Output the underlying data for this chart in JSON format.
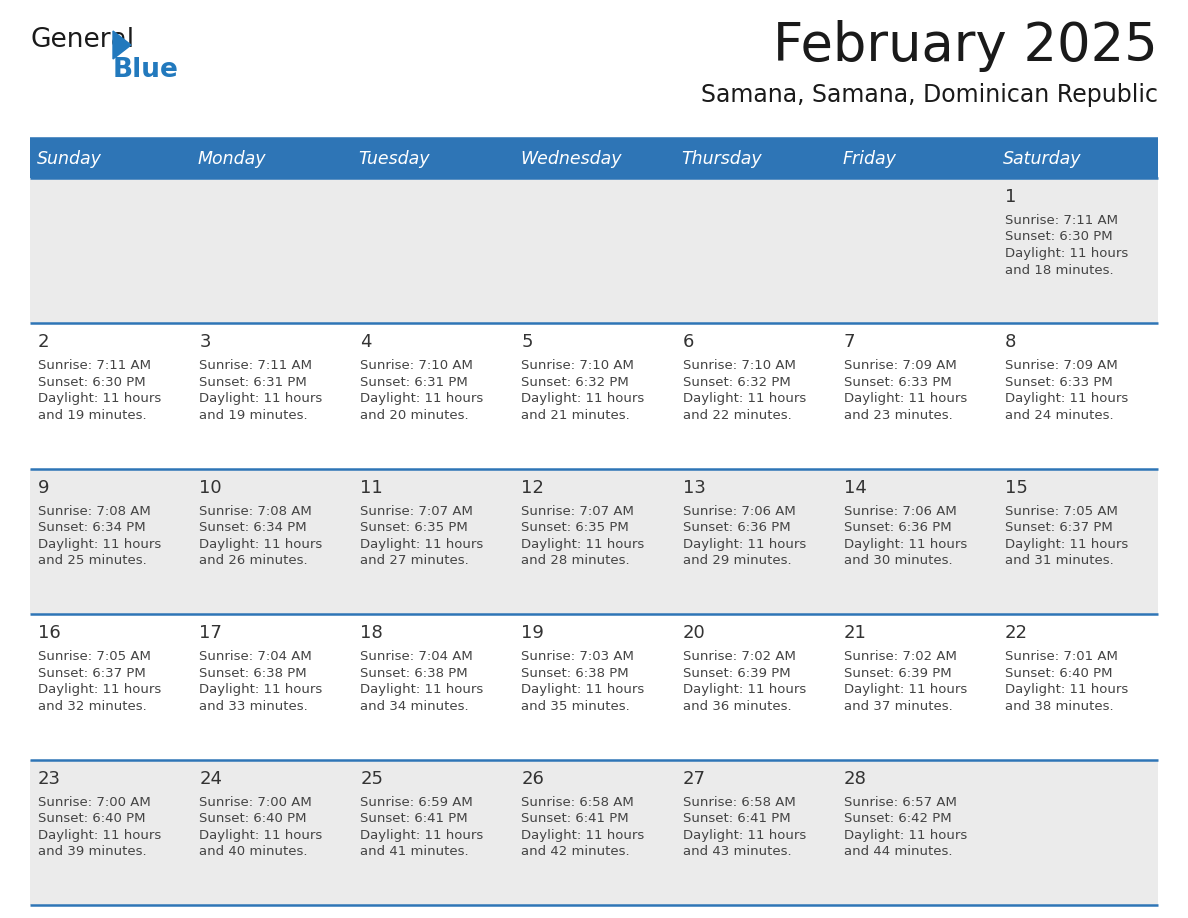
{
  "title": "February 2025",
  "subtitle": "Samana, Samana, Dominican Republic",
  "header_bg": "#2E75B6",
  "header_text_color": "#FFFFFF",
  "weekdays": [
    "Sunday",
    "Monday",
    "Tuesday",
    "Wednesday",
    "Thursday",
    "Friday",
    "Saturday"
  ],
  "row0_bg": "#EBEBEB",
  "row1_bg": "#FFFFFF",
  "row2_bg": "#EBEBEB",
  "row3_bg": "#FFFFFF",
  "row4_bg": "#EBEBEB",
  "separator_color": "#2E75B6",
  "day_number_color": "#333333",
  "cell_text_color": "#444444",
  "calendar": [
    [
      null,
      null,
      null,
      null,
      null,
      null,
      {
        "day": 1,
        "sunrise": "7:11 AM",
        "sunset": "6:30 PM",
        "daylight_h": "11 hours",
        "daylight_m": "18 minutes."
      }
    ],
    [
      {
        "day": 2,
        "sunrise": "7:11 AM",
        "sunset": "6:30 PM",
        "daylight_h": "11 hours",
        "daylight_m": "19 minutes."
      },
      {
        "day": 3,
        "sunrise": "7:11 AM",
        "sunset": "6:31 PM",
        "daylight_h": "11 hours",
        "daylight_m": "19 minutes."
      },
      {
        "day": 4,
        "sunrise": "7:10 AM",
        "sunset": "6:31 PM",
        "daylight_h": "11 hours",
        "daylight_m": "20 minutes."
      },
      {
        "day": 5,
        "sunrise": "7:10 AM",
        "sunset": "6:32 PM",
        "daylight_h": "11 hours",
        "daylight_m": "21 minutes."
      },
      {
        "day": 6,
        "sunrise": "7:10 AM",
        "sunset": "6:32 PM",
        "daylight_h": "11 hours",
        "daylight_m": "22 minutes."
      },
      {
        "day": 7,
        "sunrise": "7:09 AM",
        "sunset": "6:33 PM",
        "daylight_h": "11 hours",
        "daylight_m": "23 minutes."
      },
      {
        "day": 8,
        "sunrise": "7:09 AM",
        "sunset": "6:33 PM",
        "daylight_h": "11 hours",
        "daylight_m": "24 minutes."
      }
    ],
    [
      {
        "day": 9,
        "sunrise": "7:08 AM",
        "sunset": "6:34 PM",
        "daylight_h": "11 hours",
        "daylight_m": "25 minutes."
      },
      {
        "day": 10,
        "sunrise": "7:08 AM",
        "sunset": "6:34 PM",
        "daylight_h": "11 hours",
        "daylight_m": "26 minutes."
      },
      {
        "day": 11,
        "sunrise": "7:07 AM",
        "sunset": "6:35 PM",
        "daylight_h": "11 hours",
        "daylight_m": "27 minutes."
      },
      {
        "day": 12,
        "sunrise": "7:07 AM",
        "sunset": "6:35 PM",
        "daylight_h": "11 hours",
        "daylight_m": "28 minutes."
      },
      {
        "day": 13,
        "sunrise": "7:06 AM",
        "sunset": "6:36 PM",
        "daylight_h": "11 hours",
        "daylight_m": "29 minutes."
      },
      {
        "day": 14,
        "sunrise": "7:06 AM",
        "sunset": "6:36 PM",
        "daylight_h": "11 hours",
        "daylight_m": "30 minutes."
      },
      {
        "day": 15,
        "sunrise": "7:05 AM",
        "sunset": "6:37 PM",
        "daylight_h": "11 hours",
        "daylight_m": "31 minutes."
      }
    ],
    [
      {
        "day": 16,
        "sunrise": "7:05 AM",
        "sunset": "6:37 PM",
        "daylight_h": "11 hours",
        "daylight_m": "32 minutes."
      },
      {
        "day": 17,
        "sunrise": "7:04 AM",
        "sunset": "6:38 PM",
        "daylight_h": "11 hours",
        "daylight_m": "33 minutes."
      },
      {
        "day": 18,
        "sunrise": "7:04 AM",
        "sunset": "6:38 PM",
        "daylight_h": "11 hours",
        "daylight_m": "34 minutes."
      },
      {
        "day": 19,
        "sunrise": "7:03 AM",
        "sunset": "6:38 PM",
        "daylight_h": "11 hours",
        "daylight_m": "35 minutes."
      },
      {
        "day": 20,
        "sunrise": "7:02 AM",
        "sunset": "6:39 PM",
        "daylight_h": "11 hours",
        "daylight_m": "36 minutes."
      },
      {
        "day": 21,
        "sunrise": "7:02 AM",
        "sunset": "6:39 PM",
        "daylight_h": "11 hours",
        "daylight_m": "37 minutes."
      },
      {
        "day": 22,
        "sunrise": "7:01 AM",
        "sunset": "6:40 PM",
        "daylight_h": "11 hours",
        "daylight_m": "38 minutes."
      }
    ],
    [
      {
        "day": 23,
        "sunrise": "7:00 AM",
        "sunset": "6:40 PM",
        "daylight_h": "11 hours",
        "daylight_m": "39 minutes."
      },
      {
        "day": 24,
        "sunrise": "7:00 AM",
        "sunset": "6:40 PM",
        "daylight_h": "11 hours",
        "daylight_m": "40 minutes."
      },
      {
        "day": 25,
        "sunrise": "6:59 AM",
        "sunset": "6:41 PM",
        "daylight_h": "11 hours",
        "daylight_m": "41 minutes."
      },
      {
        "day": 26,
        "sunrise": "6:58 AM",
        "sunset": "6:41 PM",
        "daylight_h": "11 hours",
        "daylight_m": "42 minutes."
      },
      {
        "day": 27,
        "sunrise": "6:58 AM",
        "sunset": "6:41 PM",
        "daylight_h": "11 hours",
        "daylight_m": "43 minutes."
      },
      {
        "day": 28,
        "sunrise": "6:57 AM",
        "sunset": "6:42 PM",
        "daylight_h": "11 hours",
        "daylight_m": "44 minutes."
      },
      null
    ]
  ],
  "logo_color_general": "#1a1a1a",
  "logo_color_blue": "#2279BD",
  "logo_triangle_color": "#2279BD",
  "title_color": "#1a1a1a",
  "subtitle_color": "#1a1a1a"
}
